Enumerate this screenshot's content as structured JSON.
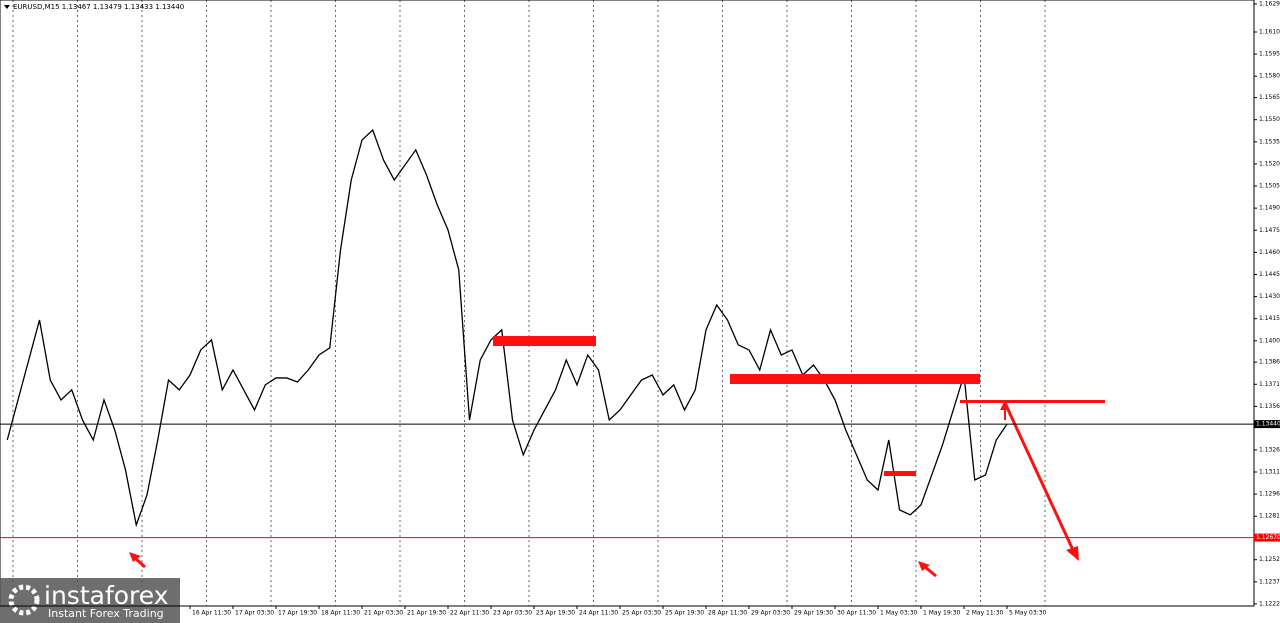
{
  "chart_data": {
    "type": "line",
    "title": "EURUSD,M15  1.13467 1.13479 1.13433 1.13440",
    "categories": [
      null,
      null,
      null,
      null,
      null,
      null,
      null,
      null,
      null,
      null,
      null,
      null,
      null,
      null,
      null,
      null,
      null,
      "16 Apr 11:30",
      null,
      null,
      null,
      "17 Apr 03:30",
      null,
      null,
      null,
      "17 Apr 19:30",
      null,
      null,
      null,
      "18 Apr 11:30",
      null,
      null,
      null,
      "21 Apr 03:30",
      null,
      null,
      null,
      "21 Apr 19:30",
      null,
      null,
      null,
      "22 Apr 11:30",
      null,
      null,
      null,
      "23 Apr 03:30",
      null,
      null,
      null,
      "23 Apr 19:30",
      null,
      null,
      null,
      "24 Apr 11:30",
      null,
      null,
      null,
      "25 Apr 03:30",
      null,
      null,
      null,
      "25 Apr 19:30",
      null,
      null,
      null,
      "28 Apr 11:30",
      null,
      null,
      null,
      "29 Apr 03:30",
      null,
      null,
      null,
      "29 Apr 19:30",
      null,
      null,
      null,
      "30 Apr 11:30",
      null,
      null,
      null,
      "1 May 03:30",
      null,
      null,
      null,
      "1 May 19:30",
      null,
      null,
      null,
      "2 May 11:30",
      null,
      null,
      null,
      "5 May 03:30"
    ],
    "series": [
      {
        "name": "EURUSD",
        "color": "#000000",
        "values": [
          1.13332,
          1.13604,
          1.13875,
          1.14146,
          1.13739,
          1.13604,
          1.13672,
          1.13468,
          1.13332,
          1.13604,
          1.134,
          1.13129,
          1.12756,
          1.12959,
          1.13332,
          1.13739,
          1.13672,
          1.13773,
          1.13943,
          1.14011,
          1.13672,
          1.13807,
          1.13672,
          1.13536,
          1.13706,
          1.13753,
          1.13753,
          1.13726,
          1.13807,
          1.13909,
          1.13957,
          1.14621,
          1.15096,
          1.15367,
          1.15435,
          1.15232,
          1.15096,
          1.15198,
          1.153,
          1.1513,
          1.14927,
          1.14757,
          1.14486,
          1.13468,
          1.13875,
          1.14011,
          1.14079,
          1.13468,
          1.13231,
          1.134,
          1.13536,
          1.13672,
          1.13875,
          1.13706,
          1.13909,
          1.13807,
          1.13468,
          1.13536,
          1.13638,
          1.13739,
          1.13773,
          1.13638,
          1.13706,
          1.13536,
          1.13672,
          1.14079,
          1.14248,
          1.14146,
          1.13977,
          1.13943,
          1.13807,
          1.14079,
          1.13909,
          1.13943,
          1.13773,
          1.13841,
          1.13739,
          1.13604,
          1.134,
          1.13231,
          1.13061,
          1.12993,
          1.13332,
          1.12858,
          1.12824,
          1.12892,
          1.13095,
          1.13299,
          1.13536,
          1.13773,
          1.13061,
          1.13095,
          1.13332,
          1.1344
        ]
      }
    ],
    "ylim": [
      1.12206,
      1.16317
    ],
    "yticks": [
      {
        "value": 1.1629,
        "label": "1.16290"
      },
      {
        "value": 1.161,
        "label": "1.16100"
      },
      {
        "value": 1.1595,
        "label": "1.15950"
      },
      {
        "value": 1.158,
        "label": "1.15800"
      },
      {
        "value": 1.15655,
        "label": "1.15655"
      },
      {
        "value": 1.15505,
        "label": "1.15505"
      },
      {
        "value": 1.15355,
        "label": "1.15355"
      },
      {
        "value": 1.15205,
        "label": "1.15205"
      },
      {
        "value": 1.15055,
        "label": "1.15055"
      },
      {
        "value": 1.14905,
        "label": "1.14905"
      },
      {
        "value": 1.14755,
        "label": "1.14755"
      },
      {
        "value": 1.14605,
        "label": "1.14605"
      },
      {
        "value": 1.14455,
        "label": "1.14455"
      },
      {
        "value": 1.14305,
        "label": "1.14305"
      },
      {
        "value": 1.14155,
        "label": "1.14155"
      },
      {
        "value": 1.14005,
        "label": "1.14005"
      },
      {
        "value": 1.1386,
        "label": "1.13860"
      },
      {
        "value": 1.1371,
        "label": "1.13710"
      },
      {
        "value": 1.1356,
        "label": "1.13560"
      },
      {
        "value": 1.13265,
        "label": "1.13265"
      },
      {
        "value": 1.13115,
        "label": "1.13115"
      },
      {
        "value": 1.12965,
        "label": "1.12965"
      },
      {
        "value": 1.12815,
        "label": "1.12815"
      },
      {
        "value": 1.1252,
        "label": "1.12520"
      },
      {
        "value": 1.1237,
        "label": "1.12370"
      },
      {
        "value": 1.1222,
        "label": "1.12220"
      }
    ],
    "price_lines": [
      {
        "value": 1.1344,
        "label": "1.13440",
        "color": "#000000"
      },
      {
        "value": 1.1267,
        "label": "1.12670",
        "color": "#ff0000"
      }
    ],
    "logo": {
      "name": "instaforex",
      "tagline": "Instant Forex Trading"
    }
  }
}
